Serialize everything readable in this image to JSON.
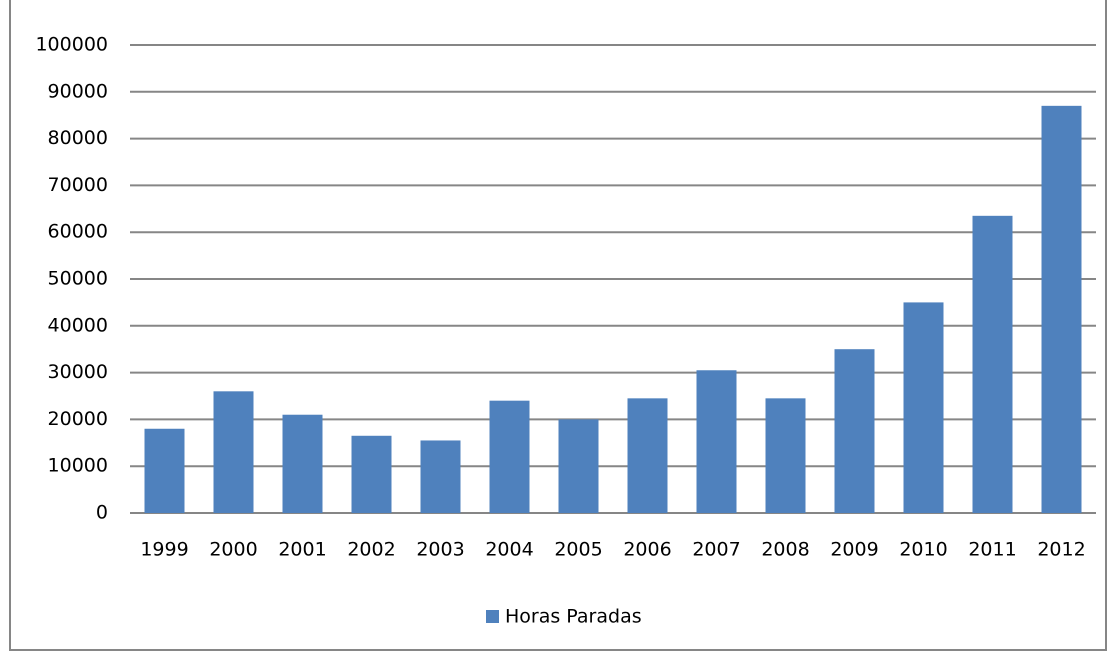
{
  "chart_data": {
    "type": "bar",
    "categories": [
      "1999",
      "2000",
      "2001",
      "2002",
      "2003",
      "2004",
      "2005",
      "2006",
      "2007",
      "2008",
      "2009",
      "2010",
      "2011",
      "2012"
    ],
    "series": [
      {
        "name": "Horas Paradas",
        "color": "#4f81bd",
        "values": [
          18000,
          26000,
          21000,
          16500,
          15500,
          24000,
          20000,
          24500,
          30500,
          24500,
          35000,
          45000,
          63500,
          87000
        ]
      }
    ],
    "ylim": [
      0,
      100000
    ],
    "yticks": [
      0,
      10000,
      20000,
      30000,
      40000,
      50000,
      60000,
      70000,
      80000,
      90000,
      100000
    ],
    "grid": true,
    "legend": "bottom"
  }
}
